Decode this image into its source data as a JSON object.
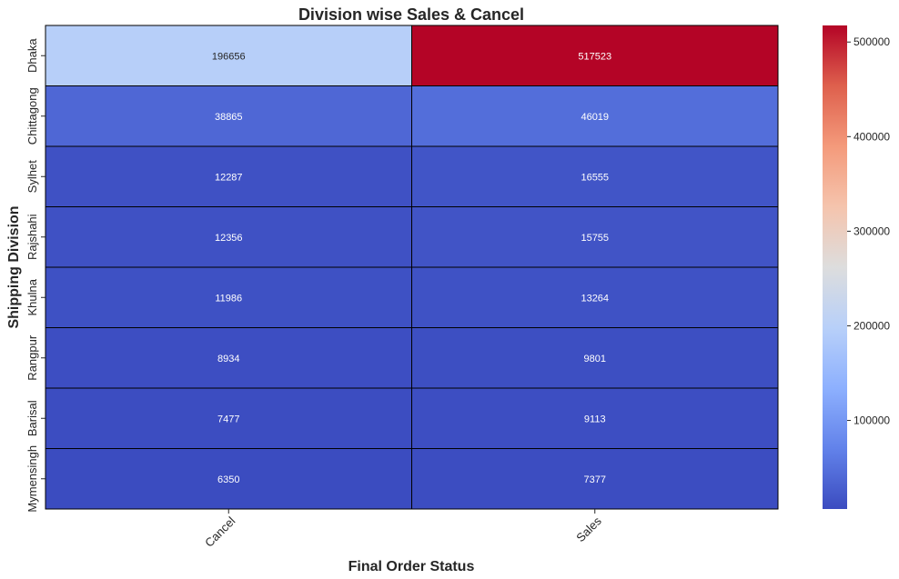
{
  "chart_data": {
    "type": "heatmap",
    "title": "Division wise Sales & Cancel",
    "xlabel": "Final Order Status",
    "ylabel": "Shipping Division",
    "x_categories": [
      "Cancel",
      "Sales"
    ],
    "y_categories": [
      "Dhaka",
      "Chittagong",
      "Sylhet",
      "Rajshahi",
      "Khulna",
      "Rangpur",
      "Barisal",
      "Mymensingh"
    ],
    "values": [
      [
        196656,
        517523
      ],
      [
        38865,
        46019
      ],
      [
        12287,
        16555
      ],
      [
        12356,
        15755
      ],
      [
        11986,
        13264
      ],
      [
        8934,
        9801
      ],
      [
        7477,
        9113
      ],
      [
        6350,
        7377
      ]
    ],
    "colormap": "coolwarm",
    "color_range": [
      6350,
      517523
    ],
    "colorbar_ticks": [
      100000,
      200000,
      300000,
      400000,
      500000
    ],
    "colorbar_tick_labels": [
      "100000",
      "200000",
      "300000",
      "400000",
      "500000"
    ],
    "grid": true,
    "x_tick_rotation": 45,
    "cell_border_color": "#000000"
  }
}
